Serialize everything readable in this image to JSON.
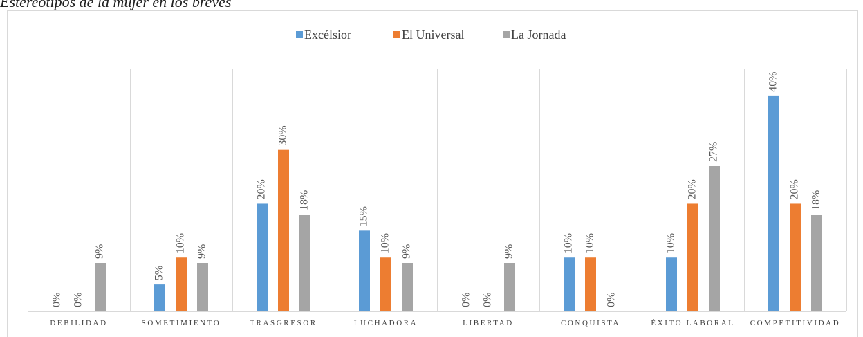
{
  "chart_data": {
    "type": "bar",
    "title": "Estereotipos de la mujer en los breves",
    "categories": [
      "DEBILIDAD",
      "SOMETIMIENTO",
      "TRASGRESOR",
      "LUCHADORA",
      "LIBERTAD",
      "CONQUISTA",
      "ÉXITO LABORAL",
      "COMPETITIVIDAD"
    ],
    "series": [
      {
        "name": "Excélsior",
        "color": "#5b9bd5",
        "values": [
          0,
          5,
          20,
          15,
          0,
          10,
          10,
          40
        ],
        "value_labels": [
          "0%",
          "5%",
          "20%",
          "15%",
          "0%",
          "10%",
          "10%",
          "40%"
        ]
      },
      {
        "name": "El Universal",
        "color": "#ed7d31",
        "values": [
          0,
          10,
          30,
          10,
          0,
          10,
          20,
          20
        ],
        "value_labels": [
          "0%",
          "10%",
          "30%",
          "10%",
          "0%",
          "10%",
          "20%",
          "20%"
        ]
      },
      {
        "name": "La Jornada",
        "color": "#a5a5a5",
        "values": [
          9,
          9,
          18,
          9,
          9,
          0,
          27,
          18
        ],
        "value_labels": [
          "9%",
          "9%",
          "18%",
          "9%",
          "9%",
          "0%",
          "27%",
          "18%"
        ]
      }
    ],
    "ylim": [
      0,
      45
    ],
    "legend": "top"
  }
}
